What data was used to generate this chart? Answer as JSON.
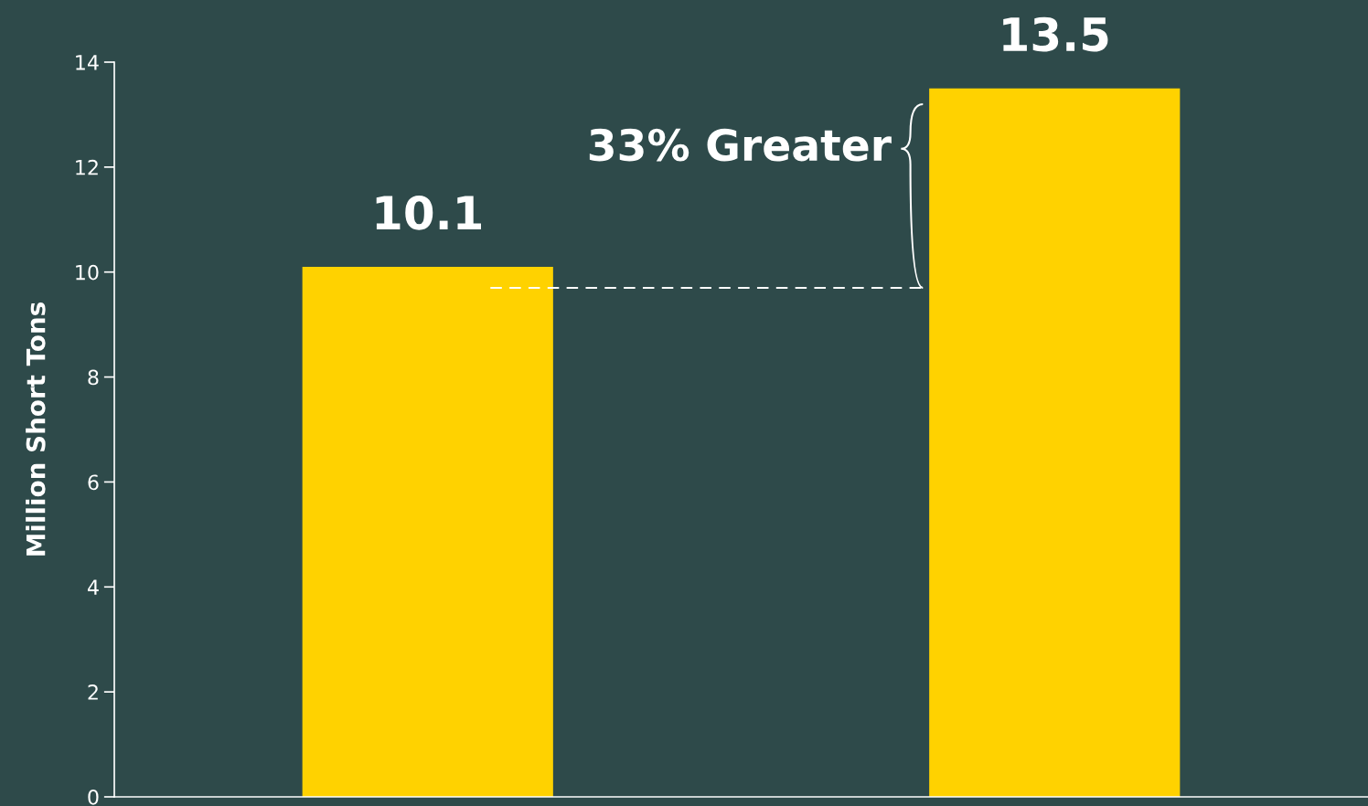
{
  "chart_data": {
    "type": "bar",
    "ylabel": "Million Short Tons",
    "categories": [
      null,
      null
    ],
    "values": [
      10.1,
      13.5
    ],
    "color": "#ffd200",
    "data_labels": true,
    "ylim": [
      0,
      14
    ],
    "yticks": [
      0,
      2,
      4,
      6,
      8,
      10,
      12,
      14
    ],
    "grid": false,
    "ref_lines": [
      {
        "axis": "y",
        "value": 9.7,
        "label": null,
        "color": "#ffffff",
        "line_style": "dashed"
      }
    ],
    "annotations": [
      "33% Greater"
    ]
  }
}
